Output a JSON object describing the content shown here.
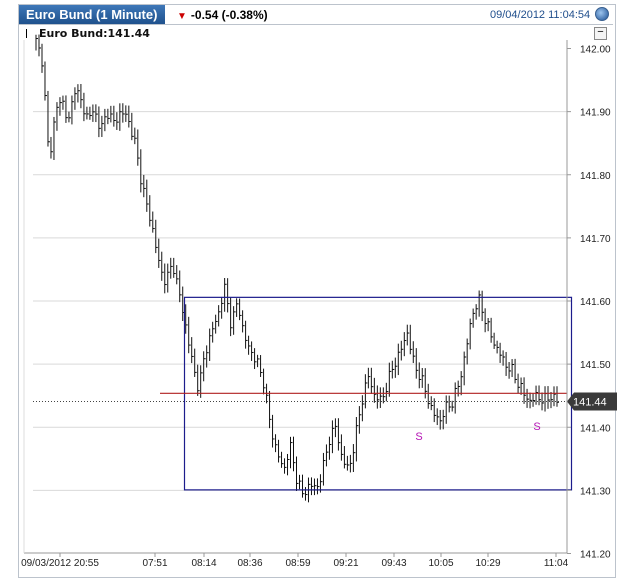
{
  "header": {
    "title": "Euro Bund (1 Minute)",
    "change": "-0.54 (-0.38%)",
    "timestamp": "09/04/2012 11:04:54"
  },
  "legend": {
    "label": "Euro Bund:141.44"
  },
  "colors": {
    "bars": "#111111",
    "rectangle": "#1c1c8c",
    "level_line": "#b02020",
    "marker": "#b515b5",
    "price_tag": "#3a3a3a",
    "change_down": "#cc0000"
  },
  "chart_data": {
    "type": "ohlc",
    "xlabels": [
      "09/03/2012 20:55",
      "07:51",
      "08:14",
      "08:36",
      "08:59",
      "09:21",
      "09:43",
      "10:05",
      "10:29",
      "11:04"
    ],
    "yticks": [
      "142.00",
      "141.90",
      "141.80",
      "141.70",
      "141.60",
      "141.50",
      "141.40",
      "141.30",
      "141.20"
    ],
    "ylim": [
      141.2,
      142.0
    ],
    "last_price": "141.44",
    "grid": true,
    "path": [
      142.01,
      141.98,
      141.82,
      141.9,
      141.92,
      141.88,
      141.94,
      141.91,
      141.89,
      141.9,
      141.87,
      141.9,
      141.88,
      141.9,
      141.89,
      141.86,
      141.8,
      141.75,
      141.71,
      141.65,
      141.63,
      141.66,
      141.61,
      141.56,
      141.5,
      141.46,
      141.52,
      141.55,
      141.58,
      141.62,
      141.56,
      141.6,
      141.54,
      141.52,
      141.5,
      141.47,
      141.4,
      141.36,
      141.33,
      141.37,
      141.32,
      141.29,
      141.31,
      141.3,
      141.33,
      141.38,
      141.4,
      141.35,
      141.33,
      141.38,
      141.44,
      141.48,
      141.45,
      141.44,
      141.47,
      141.5,
      141.52,
      141.55,
      141.5,
      141.48,
      141.45,
      141.42,
      141.41,
      141.43,
      141.44,
      141.47,
      141.52,
      141.58,
      141.6,
      141.57,
      141.54,
      141.52,
      141.5,
      141.49,
      141.47,
      141.45,
      141.44,
      141.45,
      141.44,
      141.45,
      141.44
    ],
    "annotations": {
      "rectangle": {
        "x_from": "08:14",
        "x_to": "11:04",
        "y_from": 141.3,
        "y_to": 141.605
      },
      "level_line": 141.453,
      "dotted_line": 141.44,
      "markers": [
        "S",
        "S"
      ]
    }
  }
}
